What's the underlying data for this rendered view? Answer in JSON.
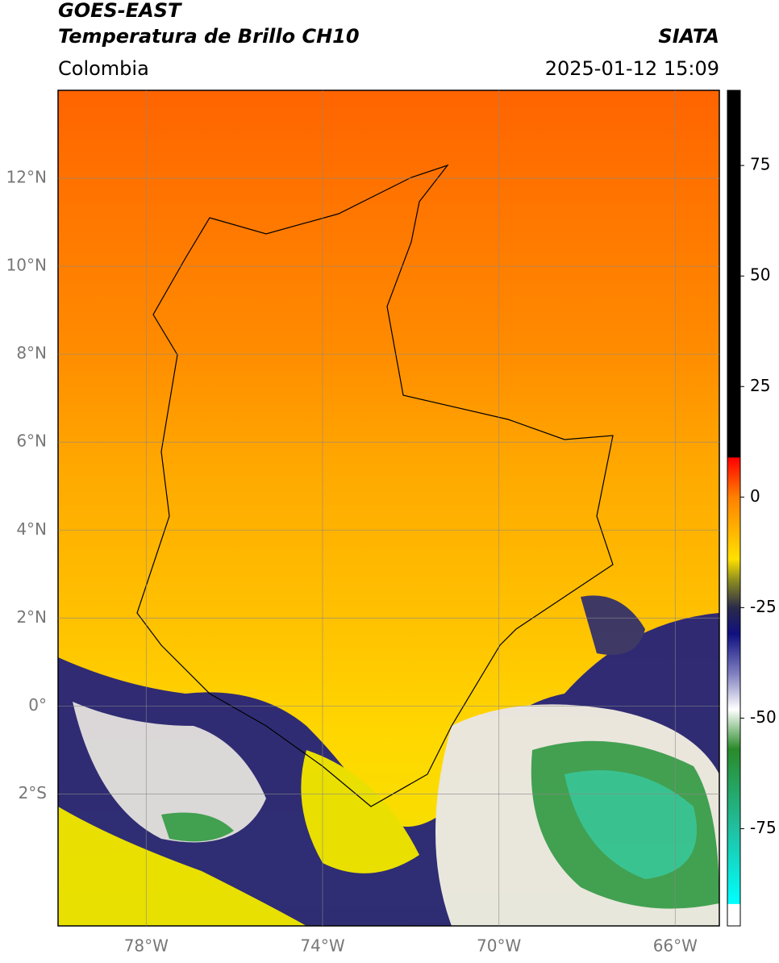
{
  "header": {
    "title": "GOES-EAST",
    "subtitle": "Temperatura de Brillo CH10",
    "source": "SIATA",
    "region": "Colombia",
    "datetime": "2025-01-12 15:09"
  },
  "map": {
    "xlim": [
      -80,
      -65
    ],
    "ylim": [
      -5,
      14
    ],
    "xticks": [
      {
        "value": -78,
        "label": "78°W"
      },
      {
        "value": -74,
        "label": "74°W"
      },
      {
        "value": -70,
        "label": "70°W"
      },
      {
        "value": -66,
        "label": "66°W"
      }
    ],
    "yticks": [
      {
        "value": 12,
        "label": "12°N"
      },
      {
        "value": 10,
        "label": "10°N"
      },
      {
        "value": 8,
        "label": "8°N"
      },
      {
        "value": 6,
        "label": "6°N"
      },
      {
        "value": 4,
        "label": "4°N"
      },
      {
        "value": 2,
        "label": "2°N"
      },
      {
        "value": 0,
        "label": "0°"
      },
      {
        "value": -2,
        "label": "2°S"
      }
    ],
    "grid": true
  },
  "colorbar": {
    "lim": [
      -97,
      92
    ],
    "ticks": [
      75,
      50,
      25,
      0,
      -25,
      -50,
      -75
    ],
    "stops": [
      {
        "value": 92,
        "color": "#000000"
      },
      {
        "value": 9,
        "color": "#000000"
      },
      {
        "value": 8.9,
        "color": "#ff0000"
      },
      {
        "value": 0,
        "color": "#ff8000"
      },
      {
        "value": -14,
        "color": "#ffe000"
      },
      {
        "value": -19,
        "color": "#8a8a20"
      },
      {
        "value": -25,
        "color": "#2a2a4a"
      },
      {
        "value": -31,
        "color": "#101080"
      },
      {
        "value": -40,
        "color": "#8080c0"
      },
      {
        "value": -48,
        "color": "#ffffff"
      },
      {
        "value": -57,
        "color": "#2a8a2a"
      },
      {
        "value": -75,
        "color": "#20c0a0"
      },
      {
        "value": -92,
        "color": "#00ffff"
      },
      {
        "value": -92.1,
        "color": "#ffffff"
      },
      {
        "value": -97,
        "color": "#ffffff"
      }
    ]
  }
}
